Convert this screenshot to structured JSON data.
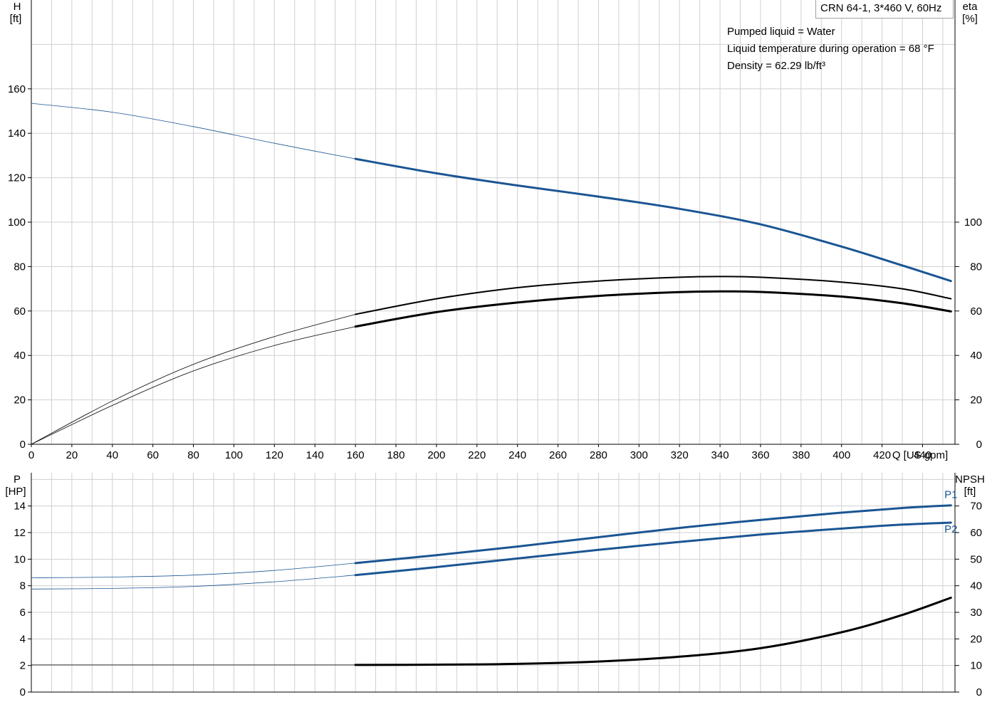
{
  "model": "CRN 64-1, 3*460 V, 60Hz",
  "info_lines": [
    "Pumped liquid = Water",
    "Liquid temperature during operation = 68 °F",
    "Density = 62.29 lb/ft³"
  ],
  "colors": {
    "blue": "#1a5593",
    "black": "#000000",
    "grid": "#d0d0d0"
  },
  "chart_data": [
    {
      "type": "line",
      "title": "",
      "xlabel": "Q [US gpm]",
      "ylabel": [
        "H",
        "[ft]"
      ],
      "ylabel_right": [
        "eta",
        "[%]"
      ],
      "x_ticks": [
        0,
        20,
        40,
        60,
        80,
        100,
        120,
        140,
        160,
        180,
        200,
        220,
        240,
        260,
        280,
        300,
        320,
        340,
        360,
        380,
        400,
        420,
        440
      ],
      "xlim": [
        0,
        456
      ],
      "ylim": [
        0,
        200
      ],
      "y_ticks": [
        0,
        20,
        40,
        60,
        80,
        100,
        120,
        140,
        160
      ],
      "y_right_ticks": [
        0,
        20,
        40,
        60,
        80,
        100
      ],
      "grid": true,
      "series": [
        {
          "name": "",
          "axis": "left",
          "color": "#1a5593",
          "operating_from": 160,
          "x": [
            0,
            40,
            80,
            120,
            160,
            200,
            240,
            280,
            320,
            360,
            400,
            430,
            454
          ],
          "y": [
            153.5,
            149.5,
            143,
            135.5,
            128.5,
            122,
            116.5,
            111.5,
            106,
            99,
            89,
            80.5,
            73.5
          ]
        },
        {
          "name": "",
          "axis": "right",
          "color": "#000000",
          "operating_from": 160,
          "x": [
            0,
            40,
            80,
            120,
            160,
            200,
            240,
            280,
            320,
            340,
            360,
            400,
            430,
            454
          ],
          "y": [
            0,
            19.5,
            36,
            48.5,
            58.5,
            65.5,
            70.5,
            73.5,
            75.2,
            75.5,
            75.2,
            73,
            70,
            65.5
          ]
        },
        {
          "name": "",
          "axis": "right",
          "color": "#000000",
          "operating_from": 160,
          "x": [
            0,
            40,
            80,
            120,
            160,
            200,
            240,
            280,
            320,
            340,
            360,
            400,
            430,
            454
          ],
          "y": [
            0,
            17.5,
            33,
            44.5,
            53,
            59.5,
            63.8,
            66.8,
            68.5,
            68.8,
            68.6,
            66.5,
            63.5,
            59.8
          ]
        }
      ]
    },
    {
      "type": "line",
      "title": "",
      "xlabel": "",
      "ylabel": [
        "P",
        "[HP]"
      ],
      "ylabel_right": [
        "NPSH",
        "[ft]"
      ],
      "xlim": [
        0,
        456
      ],
      "ylim": [
        0,
        16.5
      ],
      "y_ticks": [
        0,
        2,
        4,
        6,
        8,
        10,
        12,
        14
      ],
      "y_right_ticks": [
        0,
        10,
        20,
        30,
        40,
        50,
        60,
        70
      ],
      "grid": true,
      "series": [
        {
          "name": "P1",
          "axis": "left",
          "color": "#1a5593",
          "operating_from": 160,
          "x": [
            0,
            40,
            80,
            120,
            160,
            200,
            240,
            280,
            320,
            360,
            400,
            430,
            454
          ],
          "y": [
            8.6,
            8.65,
            8.8,
            9.15,
            9.7,
            10.3,
            10.95,
            11.65,
            12.35,
            12.95,
            13.5,
            13.85,
            14.05
          ]
        },
        {
          "name": "P2",
          "axis": "left",
          "color": "#1a5593",
          "operating_from": 160,
          "x": [
            0,
            40,
            80,
            120,
            160,
            200,
            240,
            280,
            320,
            360,
            400,
            430,
            454
          ],
          "y": [
            7.75,
            7.8,
            7.95,
            8.3,
            8.8,
            9.4,
            10.05,
            10.7,
            11.3,
            11.85,
            12.3,
            12.6,
            12.75
          ]
        },
        {
          "name": "",
          "axis": "right",
          "color": "#000000",
          "operating_from": 160,
          "x": [
            0,
            160,
            200,
            240,
            280,
            320,
            360,
            400,
            430,
            454
          ],
          "y": [
            10.2,
            10.2,
            10.3,
            10.6,
            11.5,
            13.3,
            16.5,
            22.5,
            29,
            35.5
          ]
        }
      ]
    }
  ]
}
